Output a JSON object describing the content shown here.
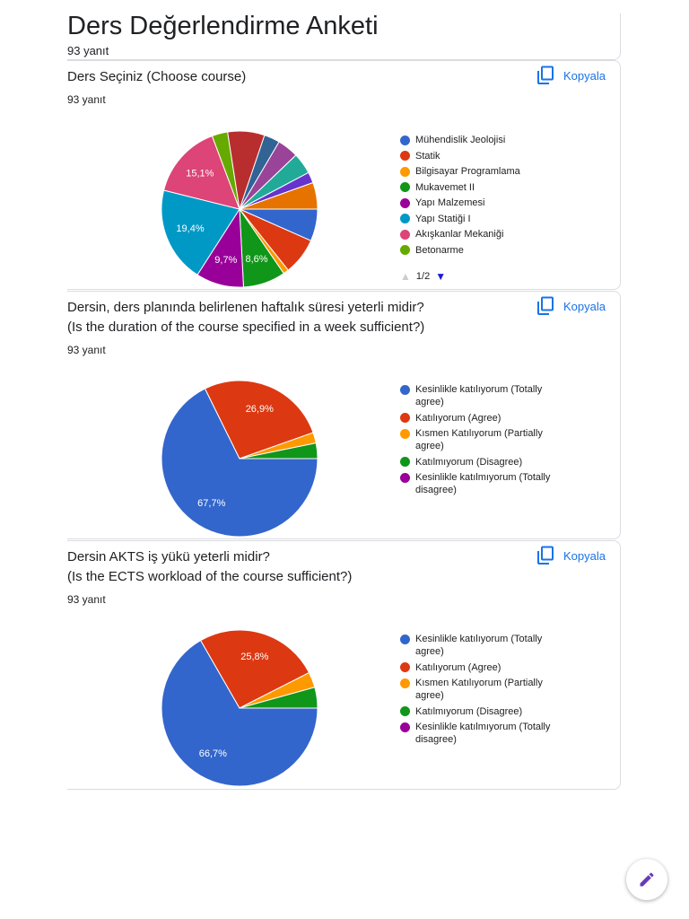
{
  "header": {
    "title": "Ders Değerlendirme Anketi",
    "responses": "93 yanıt"
  },
  "copy_button": "Kopyala",
  "chart_data": [
    {
      "type": "pie",
      "title": "Ders Seçiniz (Choose course)",
      "responses": "93 yanıt",
      "categories": [
        "Mühendislik Jeolojisi",
        "Statik",
        "Bilgisayar Programlama",
        "Mukavemet II",
        "Yapı Malzemesi",
        "Yapı Statiği I",
        "Akışkanlar Mekaniği",
        "Betonarme",
        null,
        null,
        null,
        null,
        null,
        null
      ],
      "values": [
        6.5,
        7.5,
        1.1,
        8.6,
        9.7,
        19.4,
        15.1,
        3.2,
        7.5,
        3.2,
        4.3,
        4.3,
        2.2,
        5.4
      ],
      "value_labels": [
        null,
        null,
        null,
        "8,6%",
        "9,7%",
        "19,4%",
        "15,1%",
        null,
        null,
        null,
        null,
        null,
        null,
        null
      ],
      "colors": [
        "#3366cc",
        "#dc3912",
        "#ff9900",
        "#109618",
        "#990099",
        "#0099c6",
        "#dd4477",
        "#66aa00",
        "#b82e2e",
        "#316395",
        "#994499",
        "#22aa99",
        "#6633cc",
        "#e67300"
      ],
      "legend_page": "1/2"
    },
    {
      "type": "pie",
      "title": "Dersin, ders planında belirlenen haftalık süresi yeterli midir?",
      "subtitle": "(Is the duration of the course specified in a week sufficient?)",
      "responses": "93 yanıt",
      "categories": [
        "Kesinlikle katılıyorum (Totally agree)",
        "Katılıyorum (Agree)",
        "Kısmen Katılıyorum (Partially agree)",
        "Katılmıyorum (Disagree)",
        "Kesinlikle katılmıyorum (Totally disagree)"
      ],
      "values": [
        67.7,
        26.9,
        2.2,
        3.2,
        0
      ],
      "value_labels": [
        "67,7%",
        "26,9%",
        null,
        null,
        null
      ],
      "colors": [
        "#3366cc",
        "#dc3912",
        "#ff9900",
        "#109618",
        "#990099"
      ]
    },
    {
      "type": "pie",
      "title": "Dersin AKTS iş yükü yeterli midir?",
      "subtitle": "(Is the ECTS workload of the course sufficient?)",
      "responses": "93 yanıt",
      "categories": [
        "Kesinlikle katılıyorum (Totally agree)",
        "Katılıyorum (Agree)",
        "Kısmen Katılıyorum (Partially agree)",
        "Katılmıyorum (Disagree)",
        "Kesinlikle katılmıyorum (Totally disagree)"
      ],
      "values": [
        66.7,
        25.8,
        3.2,
        4.3,
        0
      ],
      "value_labels": [
        "66,7%",
        "25,8%",
        null,
        null,
        null
      ],
      "colors": [
        "#3366cc",
        "#dc3912",
        "#ff9900",
        "#109618",
        "#990099"
      ]
    }
  ]
}
